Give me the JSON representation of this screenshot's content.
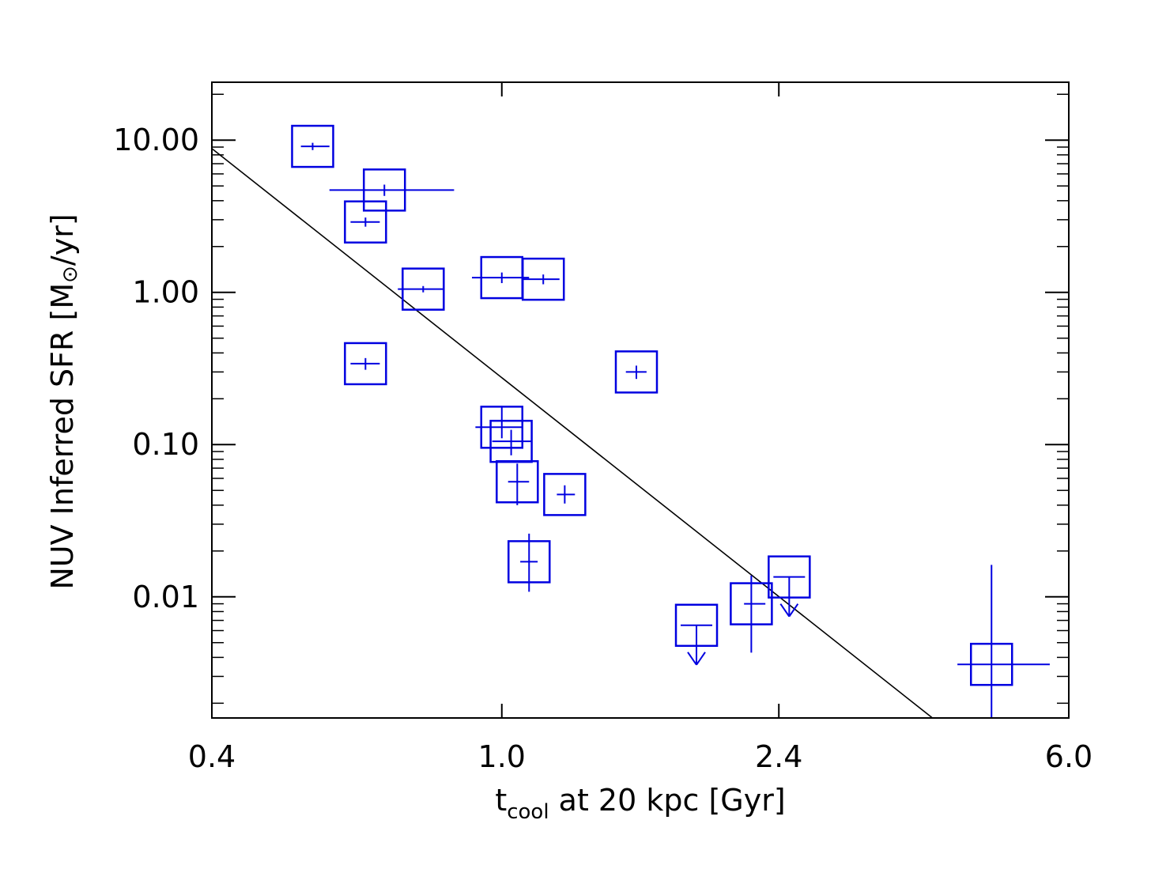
{
  "chart_data": {
    "type": "scatter",
    "x_scale": "log",
    "y_scale": "log",
    "xlim": [
      0.4,
      6.0
    ],
    "ylim": [
      0.0016,
      24
    ],
    "x_ticks": [
      0.4,
      1.0,
      2.4,
      6.0
    ],
    "x_tick_labels": [
      "0.4",
      "1.0",
      "2.4",
      "6.0"
    ],
    "y_ticks": [
      10,
      1,
      0.1,
      0.01
    ],
    "y_tick_labels": [
      "10.00",
      "1.00",
      "0.10",
      "0.01"
    ],
    "xlabel": {
      "main": "t",
      "subscript": "cool",
      "rest": " at 20 kpc [Gyr]"
    },
    "ylabel": {
      "before": "NUV Inferred SFR [M",
      "symbol": "⊙",
      "after": "/yr]"
    },
    "grid": false,
    "marker": "open square with error bars",
    "series_color": "#0000e0",
    "fit_line_color": "#000000",
    "fit_line": [
      {
        "x": 0.4,
        "y": 8.8
      },
      {
        "x": 3.9,
        "y": 0.0016
      }
    ],
    "points": [
      {
        "x": 0.55,
        "y": 9.1,
        "xerr": [
          0.53,
          0.58
        ],
        "yerr": [
          8.6,
          9.6
        ]
      },
      {
        "x": 0.69,
        "y": 4.7,
        "xerr": [
          0.58,
          0.86
        ],
        "yerr": [
          4.3,
          5.1
        ]
      },
      {
        "x": 0.65,
        "y": 2.9,
        "xerr": [
          0.62,
          0.68
        ],
        "yerr": [
          2.7,
          3.1
        ]
      },
      {
        "x": 0.78,
        "y": 1.05,
        "xerr": [
          0.72,
          0.83
        ],
        "yerr": [
          1.0,
          1.1
        ]
      },
      {
        "x": 0.65,
        "y": 0.34,
        "xerr": [
          0.62,
          0.68
        ],
        "yerr": [
          0.31,
          0.37
        ]
      },
      {
        "x": 1.0,
        "y": 1.25,
        "xerr": [
          0.91,
          1.09
        ],
        "yerr": [
          1.15,
          1.35
        ]
      },
      {
        "x": 1.14,
        "y": 1.22,
        "xerr": [
          1.07,
          1.2
        ],
        "yerr": [
          1.13,
          1.31
        ]
      },
      {
        "x": 1.53,
        "y": 0.3,
        "xerr": [
          1.48,
          1.58
        ],
        "yerr": [
          0.27,
          0.33
        ]
      },
      {
        "x": 1.0,
        "y": 0.13,
        "xerr": [
          0.92,
          1.07
        ],
        "yerr": [
          0.11,
          0.18
        ]
      },
      {
        "x": 1.03,
        "y": 0.105,
        "xerr": [
          0.97,
          1.1
        ],
        "yerr": [
          0.085,
          0.125
        ]
      },
      {
        "x": 1.05,
        "y": 0.057,
        "xerr": [
          1.02,
          1.09
        ],
        "yerr": [
          0.04,
          0.075
        ]
      },
      {
        "x": 1.22,
        "y": 0.047,
        "xerr": [
          1.19,
          1.26
        ],
        "yerr": [
          0.041,
          0.054
        ]
      },
      {
        "x": 1.09,
        "y": 0.017,
        "xerr": [
          1.06,
          1.12
        ],
        "yerr": [
          0.0108,
          0.026
        ]
      },
      {
        "x": 1.85,
        "y": 0.0065,
        "upper_limit": true
      },
      {
        "x": 2.2,
        "y": 0.009,
        "xerr": [
          2.15,
          2.3
        ],
        "yerr": [
          0.0043,
          0.0138
        ]
      },
      {
        "x": 2.48,
        "y": 0.0135,
        "upper_limit": true
      },
      {
        "x": 4.7,
        "y": 0.0036,
        "xerr": [
          4.22,
          5.65
        ],
        "yerr": [
          0.0016,
          0.0162
        ]
      }
    ]
  }
}
